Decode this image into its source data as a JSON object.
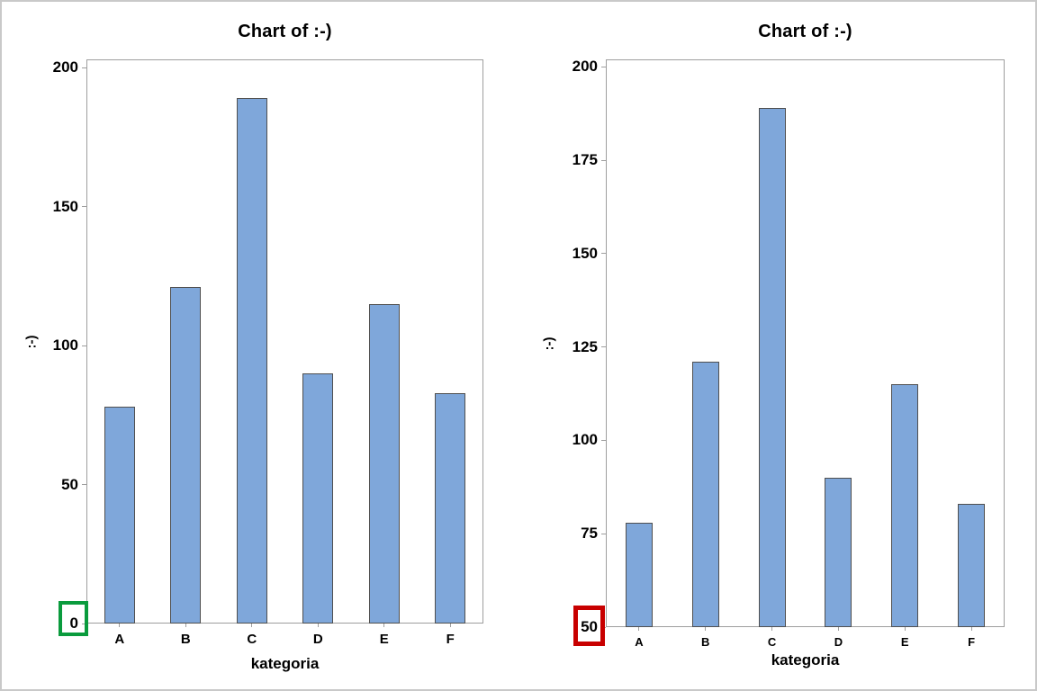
{
  "page": {
    "background": "#ffffff",
    "border_color": "#c9c9c9"
  },
  "style": {
    "bar_fill": "#7fa7da",
    "bar_border": "#4f4f4f",
    "axis_color": "#9e9e9e",
    "text_color": "#000000",
    "green_highlight": "#0a9b3d",
    "red_highlight": "#c80000"
  },
  "chart_data": [
    {
      "type": "bar",
      "title": "Chart of :-)",
      "xlabel": "kategoria",
      "ylabel": ":-)",
      "categories": [
        "A",
        "B",
        "C",
        "D",
        "E",
        "F"
      ],
      "values": [
        78,
        121,
        189,
        90,
        115,
        83
      ],
      "yticks": [
        0,
        50,
        100,
        150,
        200
      ],
      "ylim": [
        0,
        203
      ],
      "grid": false,
      "legend": "none",
      "highlighted_tick": {
        "label": "0",
        "value": 0,
        "box_color": "#0a9b3d"
      }
    },
    {
      "type": "bar",
      "title": "Chart of :-)",
      "xlabel": "kategoria",
      "ylabel": ":-)",
      "categories": [
        "A",
        "B",
        "C",
        "D",
        "E",
        "F"
      ],
      "values": [
        78,
        121,
        189,
        90,
        115,
        83
      ],
      "yticks": [
        50,
        75,
        100,
        125,
        150,
        175,
        200
      ],
      "ylim": [
        50,
        202
      ],
      "grid": false,
      "legend": "none",
      "highlighted_tick": {
        "label": "50",
        "value": 50,
        "box_color": "#c80000"
      }
    }
  ]
}
